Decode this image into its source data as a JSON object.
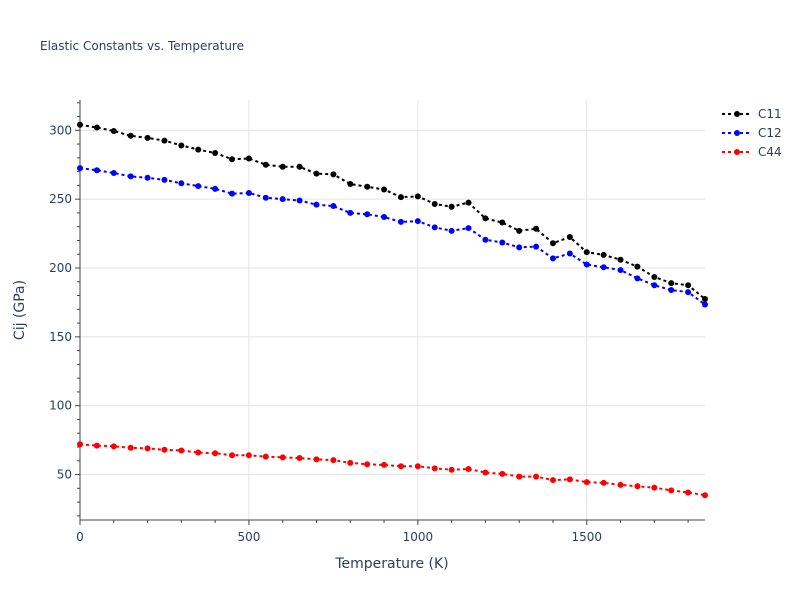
{
  "chart_data": {
    "type": "line",
    "title": "Elastic Constants vs. Temperature",
    "xlabel": "Temperature (K)",
    "ylabel": "Cij (GPa)",
    "xlim": [
      0,
      1850
    ],
    "ylim": [
      17,
      322
    ],
    "xticks": [
      0,
      500,
      1000,
      1500
    ],
    "yticks": [
      50,
      100,
      150,
      200,
      250,
      300
    ],
    "grid": true,
    "legend_position": "top-right",
    "x": [
      0,
      50,
      100,
      150,
      200,
      250,
      300,
      350,
      400,
      450,
      500,
      550,
      600,
      650,
      700,
      750,
      800,
      850,
      900,
      950,
      1000,
      1050,
      1100,
      1150,
      1200,
      1250,
      1300,
      1350,
      1400,
      1450,
      1500,
      1550,
      1600,
      1650,
      1700,
      1750,
      1800,
      1850
    ],
    "series": [
      {
        "name": "C11",
        "color": "#000000",
        "values": [
          304,
          302,
          299.5,
          296,
          294.5,
          292.5,
          289,
          286,
          283.5,
          279,
          279.5,
          275,
          273.5,
          273.5,
          268.5,
          268,
          261,
          259,
          257,
          251.5,
          252,
          246.5,
          244.5,
          247.5,
          236,
          233,
          227,
          228.5,
          218,
          222.5,
          211.5,
          209.5,
          206,
          201,
          193.5,
          189,
          187.5,
          177.5
        ]
      },
      {
        "name": "C12",
        "color": "#0000ff",
        "values": [
          272.5,
          271,
          269,
          266.5,
          265.5,
          264,
          261.5,
          259.5,
          257.5,
          254,
          254.5,
          251,
          250,
          249,
          246,
          245,
          240,
          239,
          237,
          233.5,
          234,
          229.5,
          227,
          229,
          220.5,
          218.5,
          215,
          215.5,
          207,
          210.5,
          202.5,
          200.5,
          198.5,
          192.5,
          187.5,
          184,
          182.5,
          173.5
        ]
      },
      {
        "name": "C44",
        "color": "#ff0000",
        "values": [
          72,
          71,
          70.5,
          69.5,
          69,
          68,
          67.5,
          66,
          65.5,
          64,
          64,
          63,
          62.5,
          62,
          61,
          60.5,
          58.5,
          57.5,
          57,
          56,
          56,
          54.5,
          53.5,
          54,
          51.5,
          50.5,
          48.5,
          48.5,
          46,
          46.5,
          44.5,
          44,
          42.5,
          41.5,
          40.5,
          38.5,
          37,
          35
        ]
      }
    ]
  }
}
